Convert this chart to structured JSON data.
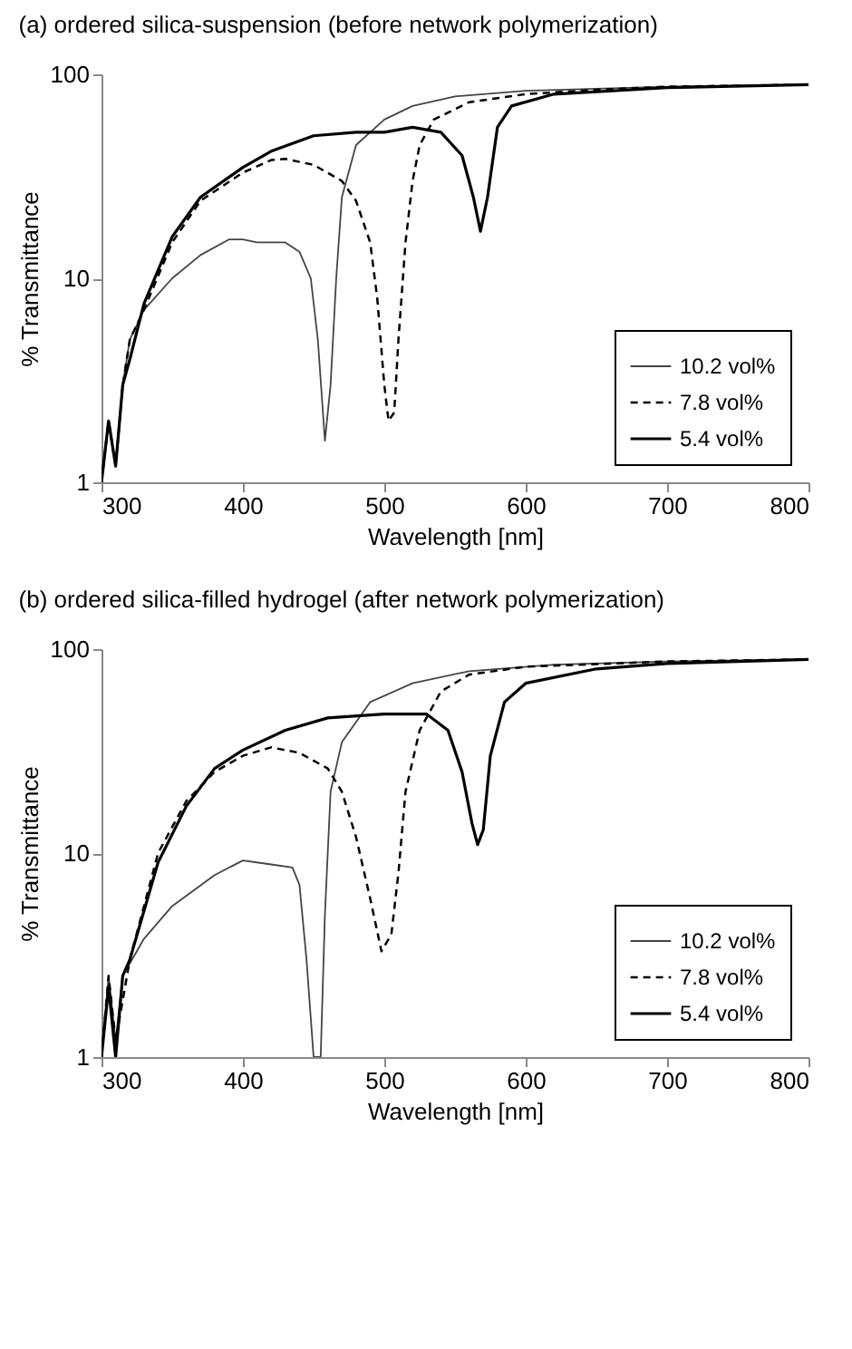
{
  "chart_data": [
    {
      "type": "line",
      "title": "(a) ordered silica-suspension (before network polymerization)",
      "xlabel": "Wavelength [nm]",
      "ylabel": "% Transmittance",
      "log": "y",
      "xlim": [
        300,
        800
      ],
      "xticks": [
        300,
        400,
        500,
        600,
        700,
        800
      ],
      "ylim": [
        1,
        100
      ],
      "yticks": [
        1,
        10,
        100
      ],
      "grid": false,
      "legend": "bottom right",
      "series": [
        {
          "name": "10.2 vol%",
          "color": "#444444",
          "line_style": "solid",
          "x": [
            300,
            305,
            310,
            315,
            320,
            330,
            350,
            370,
            390,
            400,
            410,
            430,
            440,
            448,
            453,
            458,
            462,
            466,
            470,
            480,
            500,
            520,
            550,
            600,
            650,
            700,
            800
          ],
          "values": [
            1,
            2,
            1.2,
            3,
            5,
            7,
            10,
            13,
            15.5,
            15.5,
            15,
            15,
            13.5,
            10,
            5,
            1.6,
            3,
            10,
            25,
            45,
            60,
            70,
            78,
            83,
            85,
            87,
            89
          ]
        },
        {
          "name": "7.8 vol%",
          "color": "#000000",
          "line_style": "dashed",
          "x": [
            300,
            305,
            310,
            315,
            320,
            330,
            350,
            370,
            400,
            420,
            430,
            450,
            470,
            480,
            490,
            495,
            500,
            503,
            507,
            510,
            515,
            520,
            525,
            535,
            560,
            600,
            650,
            700,
            800
          ],
          "values": [
            1,
            2,
            1.2,
            3,
            5,
            7,
            15,
            24,
            33,
            38,
            38.5,
            36,
            30,
            24,
            15,
            8,
            3,
            2,
            2.2,
            5,
            15,
            30,
            45,
            60,
            73,
            80,
            84,
            87,
            89
          ]
        },
        {
          "name": "5.4 vol%",
          "color": "#000000",
          "line_style": "solid",
          "x": [
            300,
            305,
            310,
            315,
            320,
            330,
            350,
            370,
            400,
            420,
            450,
            480,
            500,
            520,
            540,
            555,
            563,
            568,
            573,
            580,
            590,
            620,
            700,
            800
          ],
          "values": [
            1,
            2,
            1.2,
            3,
            4,
            7.5,
            16,
            25,
            35,
            42,
            50,
            52,
            52,
            55,
            52,
            40,
            25,
            17,
            25,
            55,
            70,
            80,
            86,
            89
          ]
        }
      ]
    },
    {
      "type": "line",
      "title": "(b) ordered silica-filled hydrogel (after network polymerization)",
      "xlabel": "Wavelength [nm]",
      "ylabel": "% Transmittance",
      "log": "y",
      "xlim": [
        300,
        800
      ],
      "xticks": [
        300,
        400,
        500,
        600,
        700,
        800
      ],
      "ylim": [
        1,
        100
      ],
      "yticks": [
        1,
        10,
        100
      ],
      "grid": false,
      "legend": "bottom right",
      "series": [
        {
          "name": "10.2 vol%",
          "color": "#444444",
          "line_style": "solid",
          "x": [
            300,
            305,
            310,
            315,
            330,
            350,
            380,
            400,
            420,
            435,
            440,
            445,
            450,
            455,
            458,
            462,
            470,
            490,
            520,
            560,
            620,
            700,
            800
          ],
          "values": [
            1,
            2.5,
            1.2,
            2.5,
            3.8,
            5.5,
            7.8,
            9.2,
            8.8,
            8.5,
            7,
            3,
            1,
            1,
            5,
            20,
            35,
            55,
            68,
            78,
            84,
            87,
            89
          ]
        },
        {
          "name": "7.8 vol%",
          "color": "#000000",
          "line_style": "dashed",
          "x": [
            300,
            305,
            310,
            320,
            340,
            360,
            380,
            400,
            420,
            440,
            460,
            470,
            480,
            490,
            498,
            505,
            510,
            515,
            525,
            540,
            560,
            600,
            700,
            800
          ],
          "values": [
            1,
            2.5,
            1.2,
            3,
            10,
            18,
            25,
            30,
            33,
            31,
            26,
            20,
            12,
            6,
            3.3,
            4,
            8,
            20,
            40,
            62,
            75,
            82,
            87,
            89
          ]
        },
        {
          "name": "5.4 vol%",
          "color": "#000000",
          "line_style": "solid",
          "x": [
            300,
            305,
            310,
            315,
            320,
            340,
            360,
            380,
            400,
            430,
            460,
            500,
            530,
            545,
            555,
            562,
            566,
            570,
            575,
            585,
            600,
            650,
            700,
            800
          ],
          "values": [
            1,
            2.2,
            1,
            2.5,
            3,
            9,
            17,
            26,
            32,
            40,
            46,
            48,
            48,
            40,
            25,
            14,
            11,
            13,
            30,
            55,
            68,
            80,
            85,
            89
          ]
        }
      ]
    }
  ]
}
